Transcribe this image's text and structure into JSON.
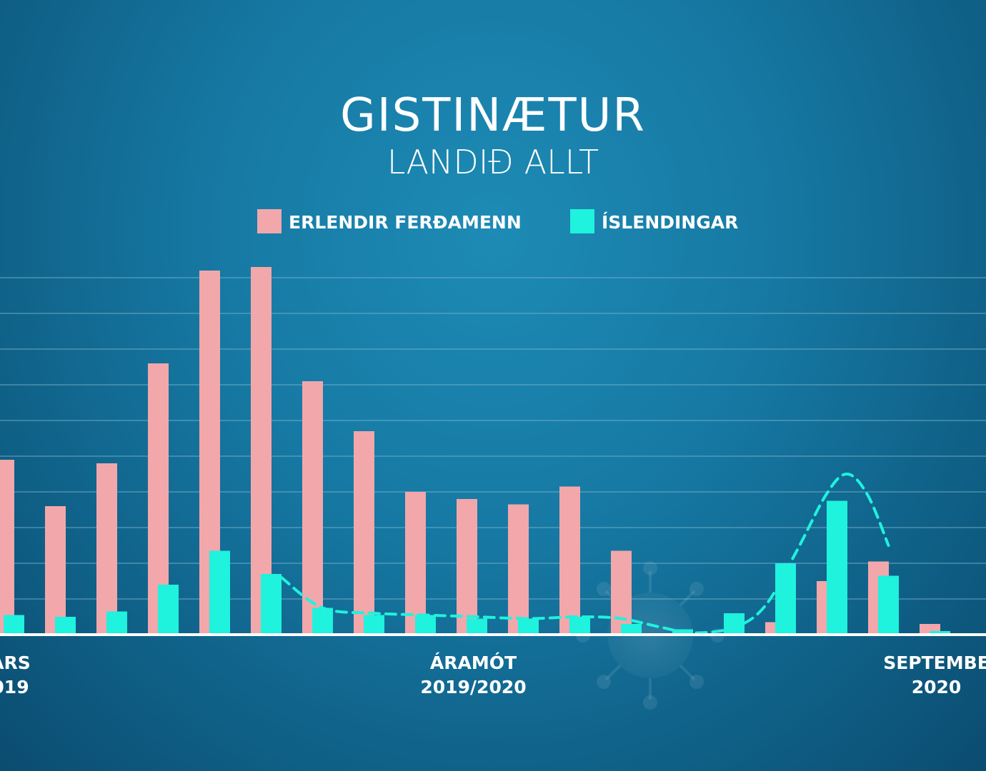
{
  "colors": {
    "erlendir": "#f2a7ab",
    "islendingar": "#1ff2dd",
    "trend": "#1ff2dd",
    "grid": "#7fb8cf",
    "baseline": "#ffffff"
  },
  "chart_data": {
    "type": "bar",
    "title": "GISTINÆTUR",
    "subtitle": "LANDIÐ ALLT",
    "xlabel": "",
    "ylabel": "",
    "ylim": [
      0,
      10
    ],
    "grid": true,
    "legend": "top-center",
    "series": [
      {
        "name": "ERLENDIR FERÐAMENN",
        "color": "#f2a7ab",
        "values": [
          4.9,
          3.6,
          4.8,
          7.6,
          10.2,
          10.3,
          7.1,
          5.7,
          4.0,
          3.8,
          3.65,
          4.15,
          2.35,
          0,
          0,
          0.35,
          1.5,
          2.05,
          0.3
        ]
      },
      {
        "name": "ÍSLENDINGAR",
        "color": "#1ff2dd",
        "values": [
          0.55,
          0.5,
          0.65,
          1.4,
          2.35,
          1.7,
          0.75,
          0.55,
          0.55,
          0.45,
          0.45,
          0.5,
          0.3,
          0.15,
          0.6,
          2.0,
          3.75,
          1.65,
          0.1
        ]
      }
    ],
    "trend_line": {
      "style": "dashed",
      "x": [
        5.2,
        6.0,
        7.0,
        8.0,
        9.0,
        10.0,
        11.0,
        11.8,
        12.6,
        13.2,
        14.0,
        14.6,
        15.2,
        15.8,
        16.2,
        16.6,
        17.0
      ],
      "y": [
        1.6,
        0.75,
        0.6,
        0.55,
        0.5,
        0.45,
        0.5,
        0.45,
        0.2,
        0.05,
        0.2,
        0.8,
        2.3,
        3.95,
        4.5,
        3.9,
        2.5
      ]
    },
    "x_tick_labels": [
      {
        "index": 0,
        "line1": "ARS",
        "line2": "019"
      },
      {
        "index": 9,
        "line1": "ÁRAMÓT",
        "line2": "2019/2020"
      },
      {
        "index": 18,
        "line1": "SEPTEMBE",
        "line2": "2020"
      }
    ]
  }
}
